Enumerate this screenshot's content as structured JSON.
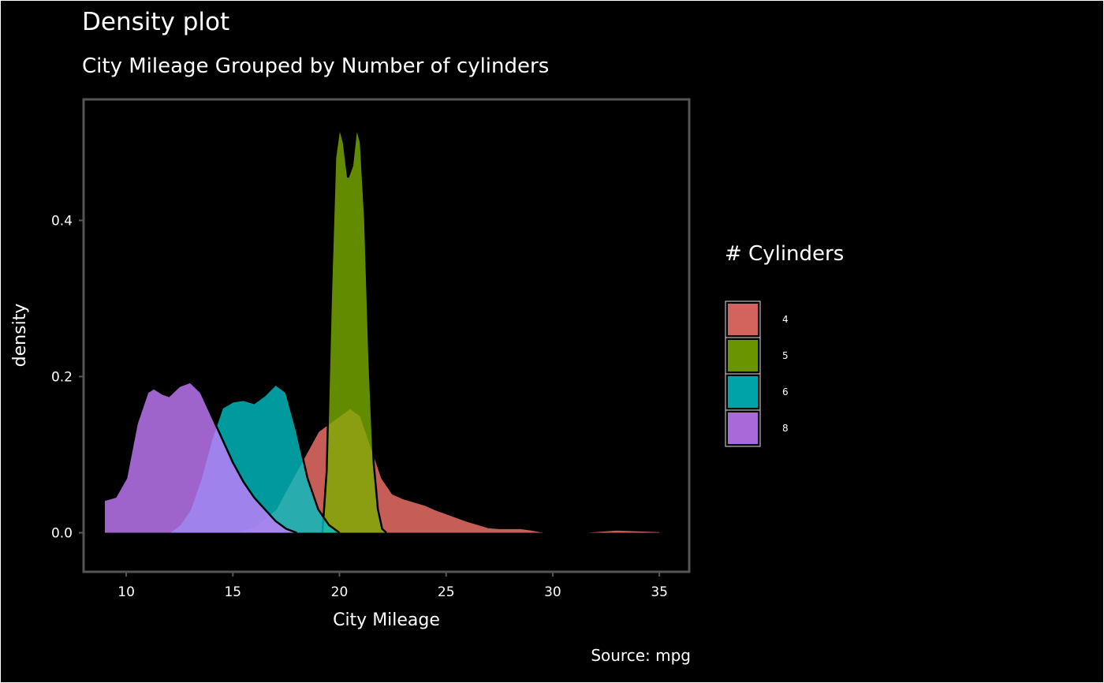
{
  "chart_data": {
    "type": "area",
    "title": "Density plot",
    "subtitle": "City Mileage Grouped by Number of cylinders",
    "xlabel": "City Mileage",
    "ylabel": "density",
    "caption": "Source: mpg",
    "xlim": [
      8,
      36.4
    ],
    "ylim": [
      -0.05,
      0.555
    ],
    "x_ticks": [
      10,
      15,
      20,
      25,
      30,
      35
    ],
    "x_tick_labels": [
      "10",
      "15",
      "20",
      "25",
      "30",
      "35"
    ],
    "y_ticks": [
      0.0,
      0.2,
      0.4
    ],
    "y_tick_labels": [
      "0.0",
      "0.2",
      "0.4"
    ],
    "grid": false,
    "legend": {
      "title": "# Cylinders",
      "position": "right",
      "entries": [
        "4",
        "5",
        "6",
        "8"
      ]
    },
    "colors": {
      "4": "#F8766D",
      "5": "#7CAE00",
      "6": "#00BFC4",
      "8": "#C77CFF",
      "background": "#000000",
      "panel_border": "#555555",
      "text": "#ffffff"
    },
    "series": [
      {
        "name": "4",
        "x": [
          15,
          16,
          17,
          18,
          18.6,
          19,
          19.5,
          20,
          20.5,
          21,
          21.5,
          22,
          22.5,
          23,
          23.5,
          24,
          24.5,
          25,
          25.5,
          26,
          26.5,
          27,
          27.5,
          28,
          28.5,
          29,
          29.5,
          30,
          30.5,
          31,
          32,
          33,
          34,
          35
        ],
        "y": [
          0.0,
          0.008,
          0.03,
          0.08,
          0.11,
          0.13,
          0.14,
          0.15,
          0.16,
          0.15,
          0.11,
          0.07,
          0.05,
          0.044,
          0.04,
          0.036,
          0.03,
          0.025,
          0.02,
          0.015,
          0.011,
          0.007,
          0.006,
          0.006,
          0.006,
          0.004,
          0.0015,
          0.0,
          0.0,
          0.0,
          0.002,
          0.004,
          0.003,
          0.002
        ]
      },
      {
        "name": "5",
        "x": [
          19.2,
          19.4,
          19.6,
          19.8,
          20.0,
          20.2,
          20.4,
          20.6,
          20.8,
          21.0,
          21.2,
          21.4,
          21.6,
          21.8,
          22.0,
          22.2
        ],
        "y": [
          0.0,
          0.08,
          0.3,
          0.48,
          0.52,
          0.5,
          0.455,
          0.47,
          0.52,
          0.5,
          0.4,
          0.22,
          0.09,
          0.03,
          0.005,
          0.0
        ]
      },
      {
        "name": "6",
        "x": [
          12,
          12.5,
          13,
          13.5,
          14,
          14.5,
          15,
          15.5,
          16,
          16.5,
          17,
          17.5,
          18,
          18.5,
          19,
          19.5,
          20
        ],
        "y": [
          0.0,
          0.01,
          0.03,
          0.07,
          0.12,
          0.16,
          0.168,
          0.17,
          0.166,
          0.176,
          0.19,
          0.18,
          0.13,
          0.07,
          0.03,
          0.01,
          0.0
        ]
      },
      {
        "name": "8",
        "x": [
          9,
          9.5,
          10,
          10.5,
          11,
          11.3,
          11.7,
          12,
          12.5,
          13,
          13.5,
          14,
          14.5,
          15,
          15.5,
          16,
          16.5,
          17,
          17.5,
          18
        ],
        "y": [
          0.042,
          0.046,
          0.07,
          0.14,
          0.18,
          0.185,
          0.178,
          0.175,
          0.188,
          0.193,
          0.18,
          0.15,
          0.12,
          0.09,
          0.065,
          0.045,
          0.03,
          0.015,
          0.005,
          0.0
        ]
      }
    ]
  }
}
